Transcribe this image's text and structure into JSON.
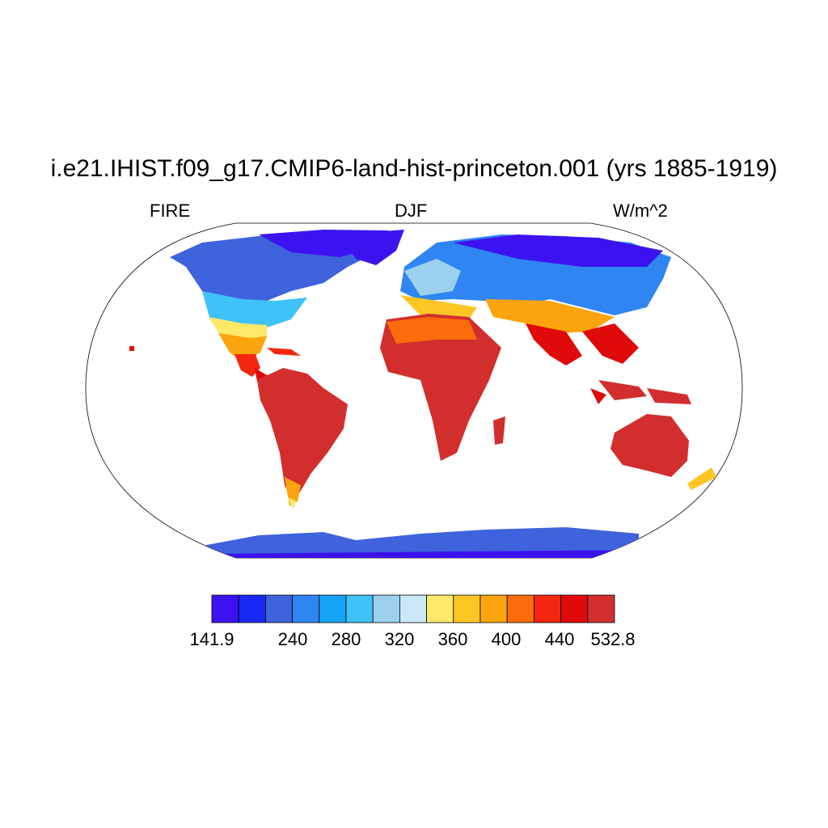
{
  "header": {
    "title": "i.e21.IHIST.f09_g17.CMIP6-land-hist-princeton.001 (yrs 1885-1919)",
    "variable": "FIRE",
    "season": "DJF",
    "units": "W/m^2"
  },
  "map": {
    "projection": "Robinson",
    "ocean_color": "#ffffff",
    "coastline_color": "#000000"
  },
  "colorbar": {
    "colors": [
      "#3d12f0",
      "#1a28f5",
      "#3e63dc",
      "#2f86f2",
      "#15a3f5",
      "#3ec2f7",
      "#9bd0ee",
      "#cae8f5",
      "#fde868",
      "#fec625",
      "#fca40e",
      "#fb6c0a",
      "#f52610",
      "#e00a0a",
      "#d22e2e"
    ],
    "labels": [
      "141.9",
      "",
      "240",
      "280",
      "320",
      "",
      "360",
      "400",
      "",
      "440",
      "532.8"
    ]
  }
}
